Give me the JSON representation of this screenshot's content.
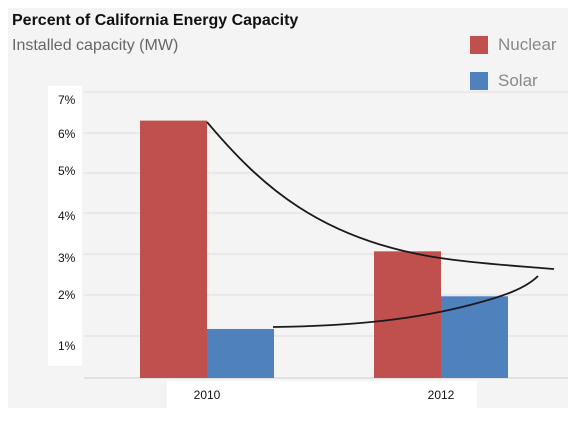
{
  "chart_data": {
    "type": "bar",
    "title": "Percent of California Energy Capacity",
    "subtitle": "Installed capacity (MW)",
    "categories": [
      "2010",
      "2012"
    ],
    "series": [
      {
        "name": "Nuclear",
        "color": "#c0504d",
        "values": [
          6.3,
          3.1
        ]
      },
      {
        "name": "Solar",
        "color": "#4f81bd",
        "values": [
          1.2,
          2.0
        ]
      }
    ],
    "y_ticks": [
      "7%",
      "6%",
      "5%",
      "4%",
      "3%",
      "2%",
      "1%"
    ],
    "ylim": [
      0,
      7
    ],
    "grid": true,
    "legend_position": "top-right",
    "annotations": [
      "nuclear decline curve",
      "solar rise curve"
    ]
  }
}
